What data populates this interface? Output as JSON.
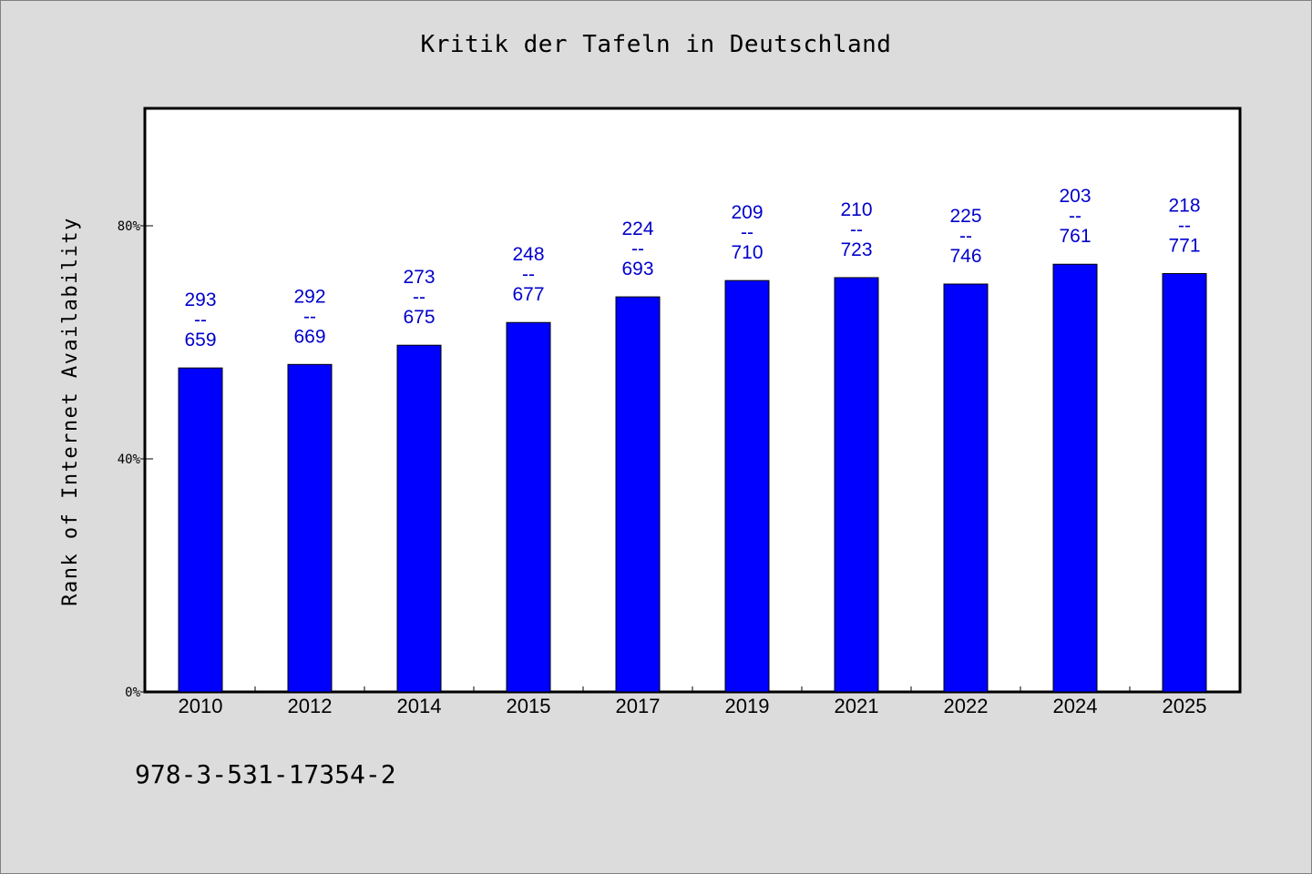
{
  "chart_data": {
    "type": "bar",
    "title": "Kritik der Tafeln in Deutschland",
    "xlabel": "",
    "ylabel": "Rank of Internet Availability",
    "categories": [
      "2010",
      "2012",
      "2014",
      "2015",
      "2017",
      "2019",
      "2021",
      "2022",
      "2024",
      "2025"
    ],
    "values": [
      55.6,
      56.2,
      59.5,
      63.4,
      67.8,
      70.6,
      71.1,
      70.0,
      73.4,
      71.8
    ],
    "data_labels": [
      {
        "top": "293",
        "sep": "--",
        "bottom": "659"
      },
      {
        "top": "292",
        "sep": "--",
        "bottom": "669"
      },
      {
        "top": "273",
        "sep": "--",
        "bottom": "675"
      },
      {
        "top": "248",
        "sep": "--",
        "bottom": "677"
      },
      {
        "top": "224",
        "sep": "--",
        "bottom": "693"
      },
      {
        "top": "209",
        "sep": "--",
        "bottom": "710"
      },
      {
        "top": "210",
        "sep": "--",
        "bottom": "723"
      },
      {
        "top": "225",
        "sep": "--",
        "bottom": "746"
      },
      {
        "top": "203",
        "sep": "--",
        "bottom": "761"
      },
      {
        "top": "218",
        "sep": "--",
        "bottom": "771"
      }
    ],
    "ylim": [
      0,
      100
    ],
    "yticks": [
      0,
      40,
      80
    ],
    "ytick_labels": [
      "0%",
      "40%",
      "80%"
    ],
    "grid": false,
    "bar_color": "#0000ff",
    "label_color": "#0000cc"
  },
  "footer": {
    "isbn": "978-3-531-17354-2"
  }
}
